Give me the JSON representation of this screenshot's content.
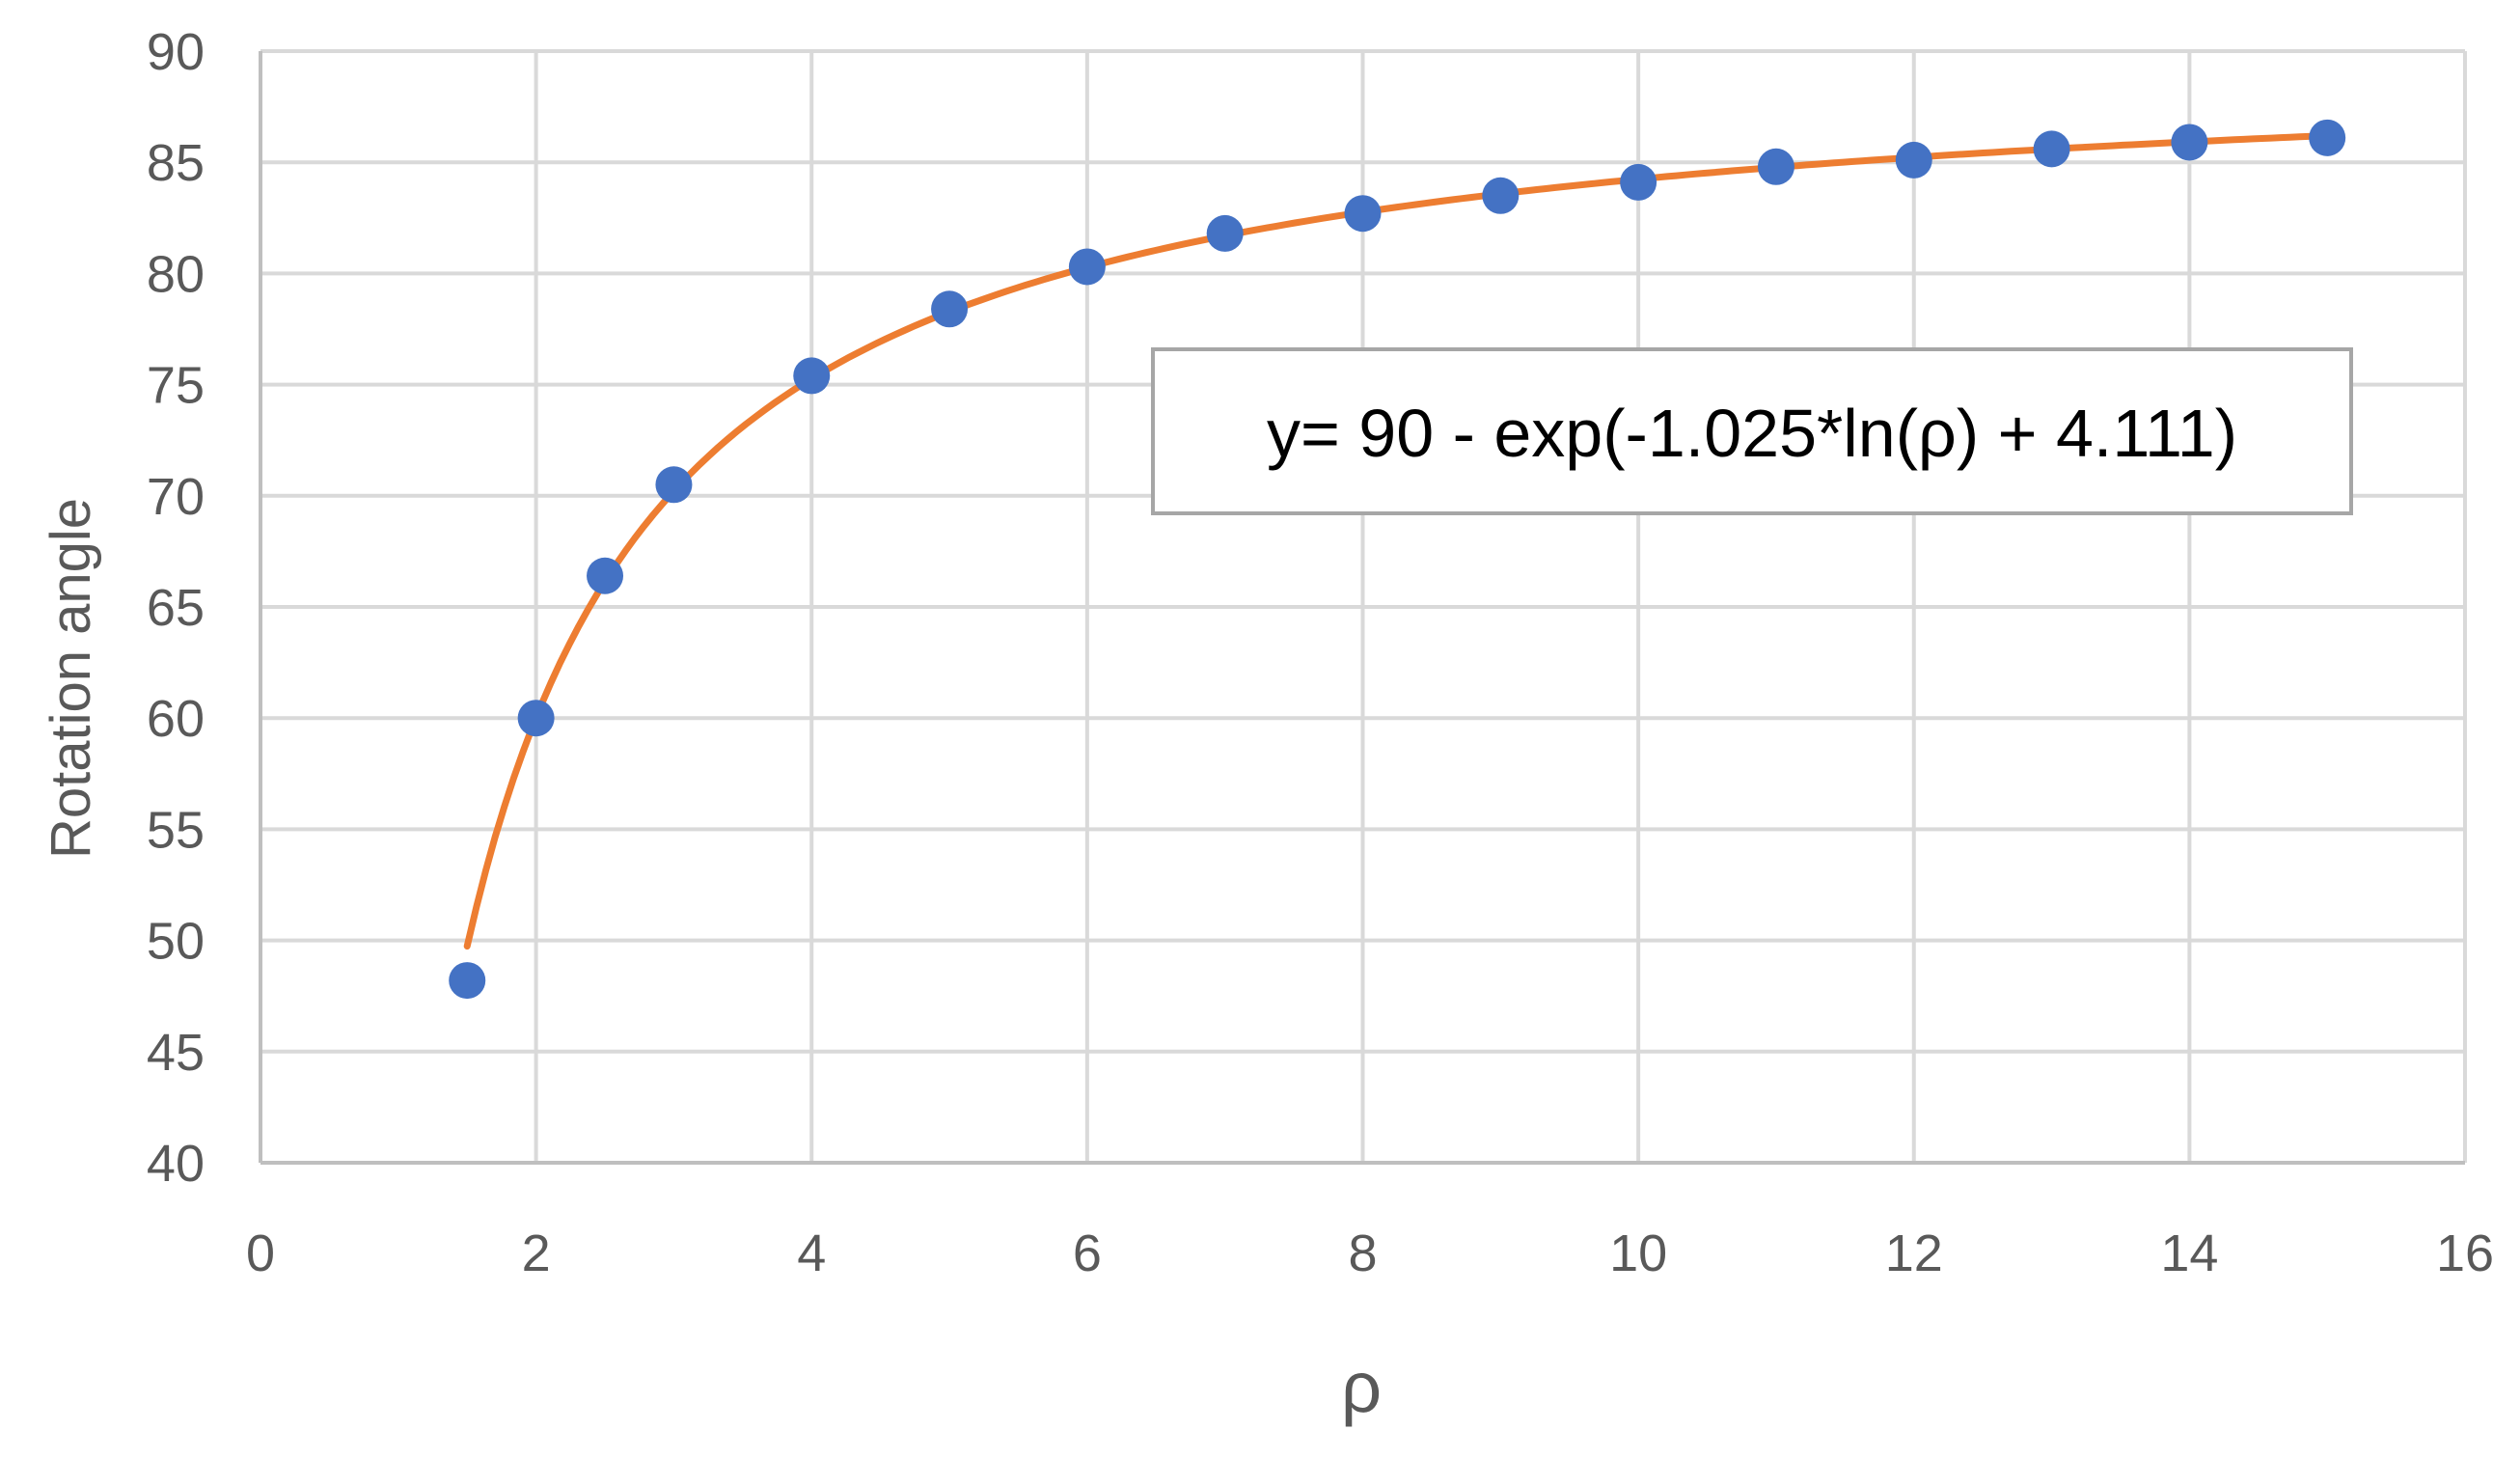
{
  "chart_data": {
    "type": "scatter",
    "title": "",
    "xlabel": "ρ",
    "ylabel": "Rotation angle",
    "xlim": [
      0,
      16
    ],
    "ylim": [
      40,
      90
    ],
    "x_ticks": [
      "0",
      "2",
      "4",
      "6",
      "8",
      "10",
      "12",
      "14",
      "16"
    ],
    "y_ticks": [
      "40",
      "45",
      "50",
      "55",
      "60",
      "65",
      "70",
      "75",
      "80",
      "85",
      "90"
    ],
    "grid": true,
    "legend": "none",
    "series": [
      {
        "kind": "points",
        "color": "#4472C4",
        "x": [
          1.5,
          2,
          2.5,
          3,
          4,
          5,
          6,
          7,
          8,
          9,
          10,
          11,
          12,
          13,
          14,
          15
        ],
        "y": [
          48.2,
          60.0,
          66.4,
          70.5,
          75.4,
          78.4,
          80.3,
          81.8,
          82.7,
          83.5,
          84.1,
          84.8,
          85.1,
          85.6,
          85.9,
          86.1
        ]
      },
      {
        "kind": "fit-line",
        "color": "#ED7D31",
        "formula": {
          "a": 90,
          "b": -1.025,
          "c": 4.111
        },
        "x_range": [
          1.5,
          15
        ]
      }
    ],
    "annotations": [
      {
        "text": "y= 90 - exp(-1.025*ln(ρ) + 4.111)"
      }
    ]
  }
}
